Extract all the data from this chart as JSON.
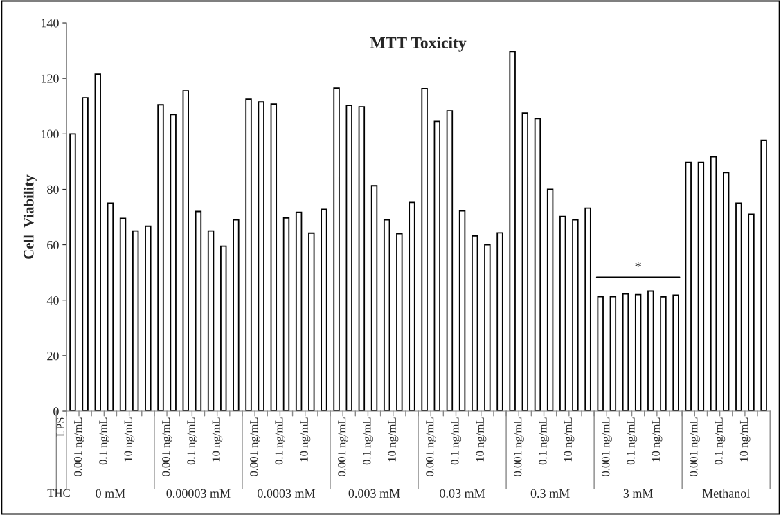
{
  "chart_data": {
    "type": "bar",
    "title": "MTT Toxicity",
    "ylabel": "Cell  Viability",
    "categories": [
      null,
      "0.001 ng/mL",
      null,
      "0.1 ng/mL",
      null,
      "10 ng/mL",
      null,
      null,
      "0.001 ng/mL",
      null,
      "0.1 ng/mL",
      null,
      "10 ng/mL",
      null,
      null,
      "0.001 ng/mL",
      null,
      "0.1 ng/mL",
      null,
      "10 ng/mL",
      null,
      null,
      "0.001 ng/mL",
      null,
      "0.1 ng/mL",
      null,
      "10 ng/mL",
      null,
      null,
      "0.001 ng/mL",
      null,
      "0.1 ng/mL",
      null,
      "10 ng/mL",
      null,
      null,
      "0.001 ng/mL",
      null,
      "0.1 ng/mL",
      null,
      "10 ng/mL",
      null,
      null,
      "0.001 ng/mL",
      null,
      "0.1 ng/mL",
      null,
      "10 ng/mL",
      null,
      null,
      "0.001 ng/mL",
      null,
      "0.1 ng/mL",
      null,
      "10 ng/mL",
      null
    ],
    "values": [
      100,
      113,
      121.5,
      75,
      69.5,
      65,
      66.7,
      110.5,
      107,
      115.5,
      72,
      65,
      59.5,
      69,
      112.5,
      111.5,
      110.8,
      69.7,
      71.7,
      64.2,
      72.8,
      116.5,
      110.3,
      109.8,
      81.3,
      69,
      64,
      75.3,
      116.3,
      104.5,
      108.3,
      72.2,
      63.2,
      60,
      64.3,
      129.7,
      107.5,
      105.5,
      80,
      70.2,
      69,
      73.2,
      41.3,
      41.3,
      42.3,
      42,
      43.3,
      41.2,
      41.8,
      89.7,
      89.7,
      91.7,
      86,
      75,
      71,
      97.7
    ],
    "color": "#ffffff",
    "ylim": [
      0,
      140
    ],
    "yticks": [
      0,
      20,
      40,
      60,
      80,
      100,
      120,
      140
    ],
    "grid": false,
    "annotations": [
      "LPS",
      "THC",
      "0 mM",
      "0.00003 mM",
      "0.0003 mM",
      "0.003 mM",
      "0.03 mM",
      "0.3 mM",
      "3 mM",
      "Methanol",
      "*"
    ]
  }
}
